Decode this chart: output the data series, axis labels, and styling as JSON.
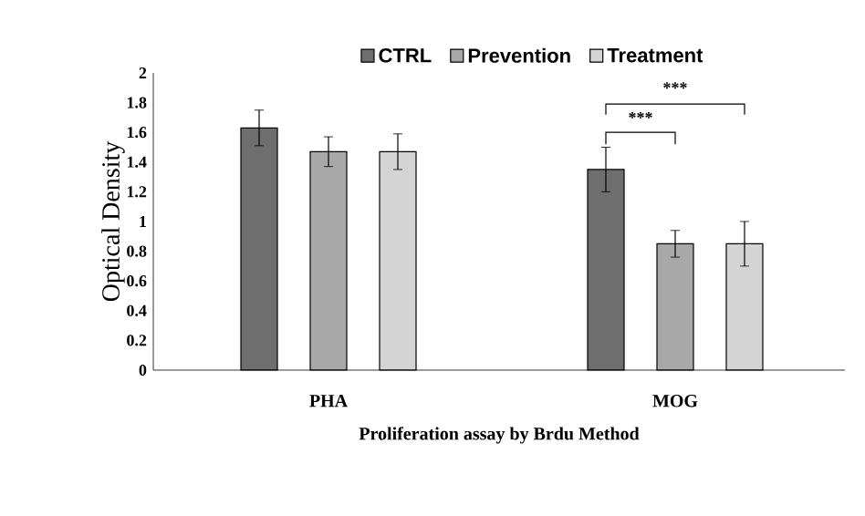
{
  "chart_data": {
    "type": "bar",
    "xlabel": "Proliferation assay by Brdu Method",
    "ylabel": "Optical Density",
    "categories": [
      "PHA",
      "MOG"
    ],
    "series": [
      {
        "name": "CTRL",
        "color": "#6e6e6e",
        "values": [
          1.63,
          1.35
        ],
        "errors": [
          0.12,
          0.15
        ]
      },
      {
        "name": "Prevention",
        "color": "#a8a8a8",
        "values": [
          1.47,
          0.85
        ],
        "errors": [
          0.1,
          0.09
        ]
      },
      {
        "name": "Treatment",
        "color": "#d4d4d4",
        "values": [
          1.47,
          0.85
        ],
        "errors": [
          0.12,
          0.15
        ]
      }
    ],
    "ylim": [
      0,
      2
    ],
    "yticks": [
      0,
      0.2,
      0.4,
      0.6,
      0.8,
      1,
      1.2,
      1.4,
      1.6,
      1.8,
      2
    ],
    "grid": false,
    "legend": "top",
    "annotations": [
      "***",
      "***"
    ]
  }
}
